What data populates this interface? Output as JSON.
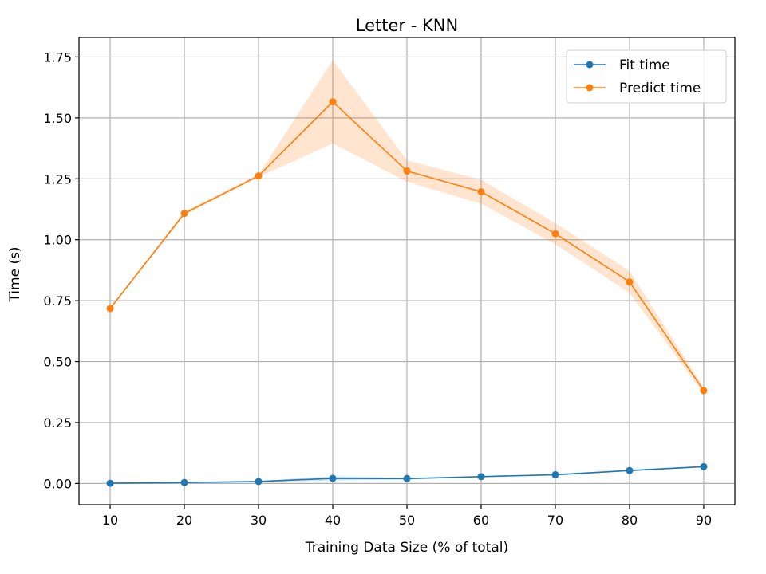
{
  "chart_data": {
    "type": "line",
    "title": "Letter - KNN",
    "xlabel": "Training Data Size (% of total)",
    "ylabel": "Time (s)",
    "x": [
      10,
      20,
      30,
      40,
      50,
      60,
      70,
      80,
      90
    ],
    "x_ticks": [
      "10",
      "20",
      "30",
      "40",
      "50",
      "60",
      "70",
      "80",
      "90"
    ],
    "y_ticks": [
      "0.00",
      "0.25",
      "0.50",
      "0.75",
      "1.00",
      "1.25",
      "1.50",
      "1.75"
    ],
    "xlim": [
      5.8,
      94.2
    ],
    "ylim": [
      -0.087,
      1.83
    ],
    "grid": true,
    "legend_position": "top-right",
    "series": [
      {
        "name": "Fit time",
        "color": "#1f77b4",
        "values": [
          0.001,
          0.004,
          0.008,
          0.021,
          0.02,
          0.028,
          0.036,
          0.053,
          0.069
        ],
        "band_lower": [
          0.0,
          0.002,
          0.006,
          0.012,
          0.017,
          0.026,
          0.033,
          0.05,
          0.066
        ],
        "band_upper": [
          0.002,
          0.006,
          0.01,
          0.03,
          0.023,
          0.03,
          0.039,
          0.056,
          0.072
        ]
      },
      {
        "name": "Predict time",
        "color": "#ff7f0e",
        "values": [
          0.718,
          1.108,
          1.262,
          1.566,
          1.282,
          1.197,
          1.025,
          0.827,
          0.381
        ],
        "band_lower": [
          0.713,
          1.1,
          1.257,
          1.395,
          1.238,
          1.148,
          0.982,
          0.782,
          0.368
        ],
        "band_upper": [
          0.723,
          1.116,
          1.267,
          1.737,
          1.326,
          1.246,
          1.068,
          0.872,
          0.394
        ]
      }
    ]
  }
}
